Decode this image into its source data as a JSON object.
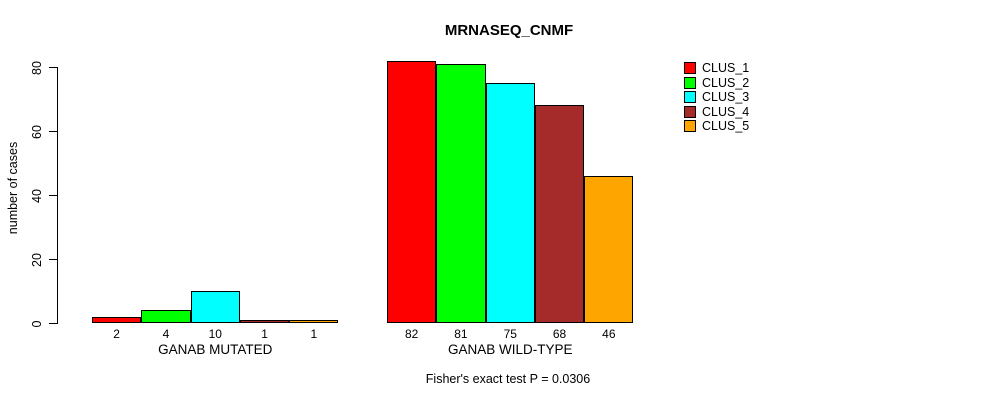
{
  "chart_data": {
    "type": "bar",
    "title": "MRNASEQ_CNMF",
    "ylabel": "number of cases",
    "xlabel": "",
    "ylim": [
      0,
      80
    ],
    "yticks": [
      0,
      20,
      40,
      60,
      80
    ],
    "grid": false,
    "legend_position": "right",
    "categories": [
      "GANAB MUTATED",
      "GANAB WILD-TYPE"
    ],
    "series": [
      {
        "name": "CLUS_1",
        "color": "#ff0000",
        "values": [
          2,
          82
        ]
      },
      {
        "name": "CLUS_2",
        "color": "#00ff00",
        "values": [
          4,
          81
        ]
      },
      {
        "name": "CLUS_3",
        "color": "#00ffff",
        "values": [
          10,
          75
        ]
      },
      {
        "name": "CLUS_4",
        "color": "#a52a2a",
        "values": [
          1,
          68
        ]
      },
      {
        "name": "CLUS_5",
        "color": "#ffa500",
        "values": [
          1,
          46
        ]
      }
    ],
    "bar_value_labels": [
      [
        "2",
        "4",
        "10",
        "1",
        "1"
      ],
      [
        "82",
        "81",
        "75",
        "68",
        "46"
      ]
    ],
    "annotation": "Fisher's exact test P = 0.0306"
  }
}
